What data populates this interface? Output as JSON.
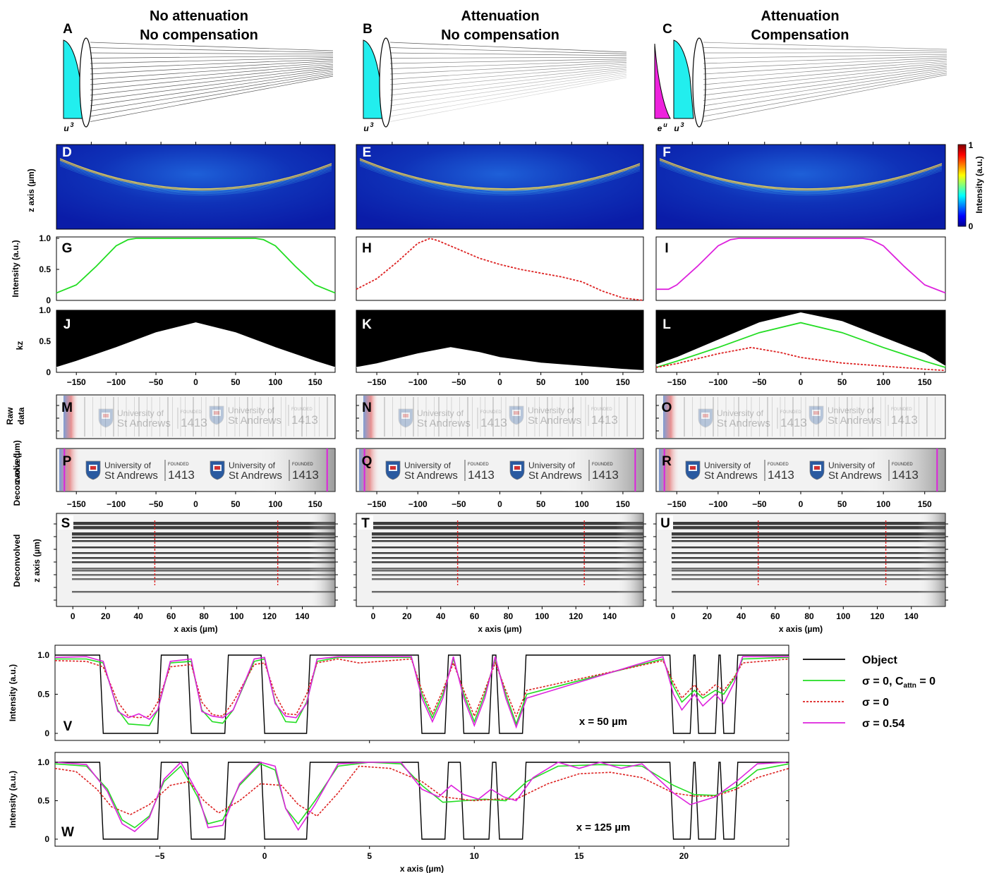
{
  "columns": [
    {
      "panel": "A",
      "title1": "No attenuation",
      "title2": "No compensation",
      "profile_label": "u",
      "profile_exp": "3"
    },
    {
      "panel": "B",
      "title1": "Attenuation",
      "title2": "No compensation",
      "profile_label": "u",
      "profile_exp": "3"
    },
    {
      "panel": "C",
      "title1": "Attenuation",
      "title2": "Compensation",
      "profile_label": "u",
      "profile_exp": "3",
      "attn_label": "e",
      "attn_exp": "u"
    }
  ],
  "panel_letters": {
    "beam": [
      "D",
      "E",
      "F"
    ],
    "intensity": [
      "G",
      "H",
      "I"
    ],
    "kz": [
      "J",
      "K",
      "L"
    ],
    "raw": [
      "M",
      "N",
      "O"
    ],
    "deconv": [
      "P",
      "Q",
      "R"
    ],
    "grating": [
      "S",
      "T",
      "U"
    ],
    "profiles": [
      "V",
      "W"
    ]
  },
  "labels": {
    "z_axis": "z axis (µm)",
    "intensity_au": "Intensity (a.u.)",
    "kz": "kz",
    "raw_data_1": "Raw",
    "raw_data_2": "data",
    "deconvolved": "Deconvolved",
    "x_axis": "x axis (µm)",
    "colorbar_title": "Intensity (a.u.)",
    "colorbar_max": "1",
    "colorbar_min": "0"
  },
  "logo_text": {
    "university_of": "University of",
    "st_andrews": "St Andrews",
    "founded": "FOUNDED",
    "year": "1413"
  },
  "colors": {
    "green": "#22dd22",
    "red": "#dd2222",
    "magenta": "#dd22dd",
    "cyan": "#22eeee",
    "beam_bg": "#0a1ca8"
  },
  "chart_data": [
    {
      "type": "line",
      "panels": [
        "G",
        "H",
        "I"
      ],
      "xlim": [
        -175,
        175
      ],
      "ylim": [
        0,
        1
      ],
      "yticks": [
        "0",
        "0.5",
        "1.0"
      ],
      "series": [
        {
          "panel": "G",
          "style": "solid",
          "color": "green",
          "x": [
            -175,
            -150,
            -125,
            -100,
            -85,
            -75,
            -50,
            0,
            50,
            75,
            85,
            100,
            125,
            150,
            175
          ],
          "y": [
            0.12,
            0.25,
            0.55,
            0.88,
            0.98,
            1.0,
            1.0,
            1.0,
            1.0,
            1.0,
            0.98,
            0.88,
            0.55,
            0.25,
            0.12
          ]
        },
        {
          "panel": "H",
          "style": "dashed",
          "color": "red",
          "x": [
            -175,
            -150,
            -125,
            -100,
            -85,
            -75,
            -50,
            -25,
            0,
            25,
            50,
            75,
            100,
            125,
            150,
            175
          ],
          "y": [
            0.18,
            0.35,
            0.62,
            0.92,
            1.0,
            0.96,
            0.82,
            0.68,
            0.58,
            0.5,
            0.44,
            0.38,
            0.3,
            0.15,
            0.04,
            0.0
          ]
        },
        {
          "panel": "I",
          "style": "solid",
          "color": "magenta",
          "x": [
            -175,
            -160,
            -150,
            -125,
            -100,
            -85,
            -75,
            -50,
            0,
            50,
            75,
            85,
            100,
            125,
            150,
            175
          ],
          "y": [
            0.18,
            0.18,
            0.25,
            0.55,
            0.88,
            0.98,
            1.0,
            1.0,
            1.0,
            1.0,
            1.0,
            0.98,
            0.88,
            0.55,
            0.25,
            0.12
          ]
        }
      ]
    },
    {
      "type": "area",
      "panels": [
        "J",
        "K",
        "L"
      ],
      "xlim": [
        -175,
        175
      ],
      "ylim": [
        0,
        1
      ],
      "yticks": [
        "0",
        "0.5",
        "1.0"
      ],
      "xticks": [
        "−150",
        "−100",
        "−50",
        "0",
        "50",
        "100",
        "150"
      ],
      "boundaries": [
        {
          "panel": "J",
          "x": [
            -175,
            -150,
            -100,
            -50,
            0,
            50,
            100,
            150,
            175
          ],
          "y": [
            0.08,
            0.18,
            0.4,
            0.64,
            0.8,
            0.64,
            0.4,
            0.18,
            0.08
          ]
        },
        {
          "panel": "K",
          "x": [
            -175,
            -150,
            -100,
            -60,
            -25,
            0,
            50,
            100,
            150,
            175
          ],
          "y": [
            0.08,
            0.14,
            0.3,
            0.4,
            0.32,
            0.24,
            0.15,
            0.1,
            0.05,
            0.03
          ]
        },
        {
          "panel": "L",
          "x": [
            -175,
            -150,
            -100,
            -50,
            0,
            50,
            100,
            150,
            175
          ],
          "y": [
            0.12,
            0.24,
            0.52,
            0.8,
            0.96,
            0.82,
            0.56,
            0.3,
            0.1
          ]
        }
      ],
      "overlays": [
        {
          "panel": "L",
          "style": "solid",
          "color": "green",
          "x": [
            -175,
            -150,
            -100,
            -50,
            0,
            50,
            100,
            150,
            175
          ],
          "y": [
            0.08,
            0.18,
            0.4,
            0.64,
            0.8,
            0.64,
            0.4,
            0.18,
            0.08
          ]
        },
        {
          "panel": "L",
          "style": "dashed",
          "color": "red",
          "x": [
            -175,
            -150,
            -100,
            -60,
            -25,
            0,
            50,
            100,
            150,
            175
          ],
          "y": [
            0.08,
            0.14,
            0.3,
            0.4,
            0.32,
            0.24,
            0.15,
            0.1,
            0.05,
            0.03
          ]
        }
      ]
    },
    {
      "type": "image",
      "panels": [
        "P",
        "Q",
        "R"
      ],
      "xticks": [
        "−150",
        "−100",
        "−50",
        "0",
        "50",
        "100",
        "150"
      ],
      "marker_x": [
        -165,
        165
      ]
    },
    {
      "type": "image",
      "panels": [
        "S",
        "T",
        "U"
      ],
      "xlim": [
        -10,
        160
      ],
      "xticks": [
        "0",
        "20",
        "40",
        "60",
        "80",
        "100",
        "120",
        "140"
      ],
      "marker_x": [
        50,
        125
      ]
    },
    {
      "type": "line",
      "panels": [
        "V",
        "W"
      ],
      "xlim": [
        -10,
        25
      ],
      "ylim": [
        0,
        1
      ],
      "yticks": [
        "0",
        "0.5",
        "1.0"
      ],
      "xticks": [
        "−5",
        "0",
        "5",
        "10",
        "15",
        "20"
      ],
      "annotations": [
        "x = 50 µm",
        "x = 125 µm"
      ],
      "legend": {
        "position": "right",
        "entries": [
          {
            "label": "Object",
            "color": "black",
            "style": "solid"
          },
          {
            "label": "σ = 0, C",
            "sub": "attn",
            "suffix": " = 0",
            "color": "green",
            "style": "solid"
          },
          {
            "label": "σ = 0",
            "color": "red",
            "style": "dashed"
          },
          {
            "label": "σ = 0.54",
            "color": "magenta",
            "style": "solid"
          }
        ]
      },
      "object_bars": [
        [
          -7.7,
          -5.1
        ],
        [
          -3.5,
          -1.9
        ],
        [
          0,
          2
        ],
        [
          7.5,
          8.6
        ],
        [
          9.5,
          10.7
        ],
        [
          11.2,
          12.3
        ],
        [
          19.5,
          20.3
        ],
        [
          20.7,
          21.5
        ],
        [
          21.9,
          22.4
        ]
      ],
      "series": [
        {
          "panel": "V",
          "name": "green",
          "color": "green",
          "style": "solid",
          "x": [
            -10,
            -8.5,
            -7.7,
            -7,
            -6.5,
            -6,
            -5.5,
            -5.1,
            -4.5,
            -3.5,
            -3,
            -2.5,
            -2,
            -1.5,
            -0.5,
            0,
            0.5,
            1,
            1.5,
            2,
            2.5,
            3.5,
            7,
            7.5,
            8,
            8.5,
            9,
            9.5,
            10,
            10.5,
            11,
            11.5,
            12,
            12.5,
            19,
            19.5,
            19.9,
            20.5,
            20.9,
            21.5,
            21.9,
            22.4,
            22.8,
            25
          ],
          "y": [
            0.95,
            0.95,
            0.9,
            0.3,
            0.12,
            0.11,
            0.1,
            0.3,
            0.9,
            0.92,
            0.3,
            0.15,
            0.13,
            0.3,
            0.92,
            0.95,
            0.4,
            0.15,
            0.14,
            0.4,
            0.92,
            0.97,
            0.97,
            0.5,
            0.2,
            0.5,
            0.95,
            0.5,
            0.15,
            0.5,
            0.95,
            0.5,
            0.12,
            0.5,
            0.95,
            0.6,
            0.4,
            0.55,
            0.45,
            0.55,
            0.5,
            0.7,
            0.95,
            0.97
          ]
        },
        {
          "panel": "V",
          "name": "red",
          "color": "red",
          "style": "dashed",
          "x": [
            -10,
            -8.5,
            -7.7,
            -7,
            -6.5,
            -6,
            -5.5,
            -5.1,
            -4.5,
            -3.5,
            -3,
            -2.5,
            -2,
            -1.5,
            -0.5,
            0,
            0.5,
            1,
            1.5,
            2,
            2.5,
            3.5,
            4.5,
            7,
            7.5,
            8,
            8.5,
            9,
            9.5,
            10,
            10.5,
            11,
            11.5,
            12,
            12.5,
            19,
            19.5,
            19.9,
            20.5,
            20.9,
            21.5,
            21.9,
            22.4,
            22.8,
            25
          ],
          "y": [
            0.93,
            0.92,
            0.85,
            0.4,
            0.22,
            0.2,
            0.22,
            0.4,
            0.85,
            0.88,
            0.4,
            0.24,
            0.22,
            0.4,
            0.88,
            0.9,
            0.5,
            0.25,
            0.24,
            0.5,
            0.9,
            0.95,
            0.9,
            0.95,
            0.55,
            0.25,
            0.55,
            0.9,
            0.55,
            0.22,
            0.55,
            0.9,
            0.55,
            0.22,
            0.55,
            0.93,
            0.65,
            0.45,
            0.62,
            0.48,
            0.62,
            0.55,
            0.72,
            0.9,
            0.95
          ]
        },
        {
          "panel": "V",
          "name": "magenta",
          "color": "magenta",
          "style": "solid",
          "x": [
            -10,
            -8.5,
            -7.7,
            -7,
            -6.5,
            -6,
            -5.5,
            -5.1,
            -4.5,
            -3.5,
            -3,
            -2.5,
            -2,
            -1.5,
            -0.5,
            0,
            0.5,
            1,
            1.5,
            2,
            2.5,
            3.5,
            7,
            7.5,
            8,
            8.5,
            9,
            9.5,
            10,
            10.5,
            11,
            11.5,
            12,
            12.5,
            19,
            19.5,
            19.9,
            20.5,
            20.9,
            21.5,
            21.9,
            22.4,
            22.8,
            25
          ],
          "y": [
            0.97,
            0.98,
            0.92,
            0.28,
            0.2,
            0.25,
            0.18,
            0.3,
            0.92,
            0.95,
            0.28,
            0.22,
            0.2,
            0.3,
            0.95,
            0.97,
            0.38,
            0.22,
            0.2,
            0.38,
            0.95,
            0.98,
            0.98,
            0.45,
            0.15,
            0.45,
            0.98,
            0.45,
            0.1,
            0.45,
            0.98,
            0.45,
            0.08,
            0.45,
            0.98,
            0.5,
            0.3,
            0.5,
            0.35,
            0.5,
            0.38,
            0.65,
            0.98,
            0.98
          ]
        },
        {
          "panel": "W",
          "name": "green",
          "color": "green",
          "style": "solid",
          "x": [
            -10,
            -8.5,
            -7.5,
            -6.8,
            -6.2,
            -5.5,
            -4.8,
            -4,
            -3.2,
            -2.7,
            -2,
            -1.2,
            -0.2,
            0.5,
            1,
            1.6,
            2.4,
            3.5,
            5,
            6.5,
            7.5,
            8.5,
            9.5,
            10.5,
            11.5,
            12.5,
            14,
            16,
            18,
            19.5,
            20.5,
            21.5,
            22.5,
            23.5,
            25
          ],
          "y": [
            0.98,
            0.95,
            0.65,
            0.25,
            0.15,
            0.3,
            0.75,
            0.95,
            0.55,
            0.2,
            0.25,
            0.7,
            0.98,
            0.9,
            0.4,
            0.2,
            0.5,
            0.95,
            1.0,
            0.98,
            0.7,
            0.48,
            0.5,
            0.52,
            0.5,
            0.75,
            0.95,
            0.97,
            0.95,
            0.7,
            0.58,
            0.57,
            0.68,
            0.9,
            0.98
          ]
        },
        {
          "panel": "W",
          "name": "red",
          "color": "red",
          "style": "dashed",
          "x": [
            -10,
            -9,
            -8,
            -7.3,
            -6.4,
            -5.5,
            -4.5,
            -3.6,
            -2.9,
            -2.2,
            -1.2,
            -0.2,
            0.8,
            1.6,
            2.5,
            3.5,
            4.5,
            6,
            7.5,
            8.5,
            10,
            11,
            12,
            13.5,
            15,
            16.5,
            18,
            19.5,
            20.5,
            21.5,
            22.5,
            23.5,
            25
          ],
          "y": [
            0.92,
            0.88,
            0.65,
            0.42,
            0.32,
            0.45,
            0.7,
            0.75,
            0.5,
            0.34,
            0.5,
            0.72,
            0.7,
            0.45,
            0.3,
            0.6,
            0.95,
            0.92,
            0.75,
            0.55,
            0.5,
            0.52,
            0.52,
            0.72,
            0.85,
            0.87,
            0.8,
            0.6,
            0.56,
            0.56,
            0.65,
            0.8,
            0.92
          ]
        },
        {
          "panel": "W",
          "name": "magenta",
          "color": "magenta",
          "style": "solid",
          "x": [
            -10,
            -8.5,
            -7.5,
            -6.8,
            -6.2,
            -5.5,
            -4.8,
            -4,
            -3.2,
            -2.7,
            -2,
            -1.2,
            -0.2,
            0.5,
            1,
            1.6,
            2.4,
            3.5,
            5,
            6.5,
            7.5,
            8.3,
            8.9,
            9.5,
            10.2,
            10.8,
            11.4,
            12,
            12.8,
            14,
            15,
            16,
            17,
            18,
            19.5,
            20.3,
            21.5,
            22.5,
            23.5,
            25
          ],
          "y": [
            1.0,
            0.97,
            0.62,
            0.2,
            0.1,
            0.28,
            0.78,
            1.0,
            0.6,
            0.15,
            0.18,
            0.72,
            1.0,
            0.95,
            0.4,
            0.12,
            0.45,
            0.98,
            1.0,
            1.0,
            0.65,
            0.55,
            0.7,
            0.58,
            0.52,
            0.65,
            0.55,
            0.5,
            0.8,
            1.0,
            0.92,
            1.0,
            0.92,
            0.98,
            0.6,
            0.45,
            0.55,
            0.75,
            0.98,
            1.0
          ]
        }
      ]
    }
  ]
}
